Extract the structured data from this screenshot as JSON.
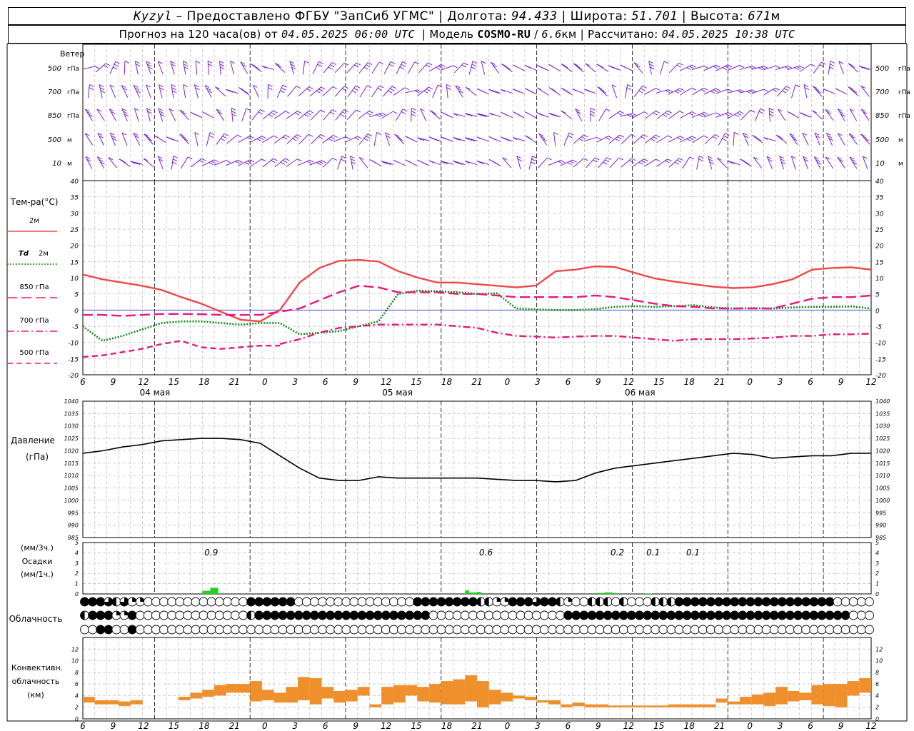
{
  "header": {
    "station": "Kyzyl",
    "sep1": "–",
    "provider": "Предоставлено ФГБУ \"ЗапСиб УГМС\"",
    "lon_label": "Долгота:",
    "lon": "94.433",
    "lat_label": "Широта:",
    "lat": "51.701",
    "alt_label": "Высота:",
    "alt": "671",
    "alt_unit": "м",
    "forecast_label": "Прогноз на 120 часа(ов) от",
    "forecast_start": "04.05.2025 06:00 UTC",
    "model_label": "Модель",
    "model": "COSMO-RU",
    "model_sep": "/",
    "resolution": "6.6",
    "resolution_unit": "км",
    "calc_label": "Рассчитано:",
    "calc_time": "04.05.2025 10:38 UTC"
  },
  "chart_data": {
    "type": "meteogram",
    "time_ticks": [
      "6",
      "9",
      "12",
      "15",
      "18",
      "21",
      "0",
      "3",
      "6",
      "9",
      "12",
      "15",
      "18",
      "21",
      "0",
      "3",
      "6",
      "9",
      "12",
      "15",
      "18",
      "21",
      "0",
      "3",
      "6",
      "9",
      "12"
    ],
    "day_labels": [
      {
        "tick_index": 2,
        "text": "04 мая"
      },
      {
        "tick_index": 10,
        "text": "05 мая"
      },
      {
        "tick_index": 18,
        "text": "06 мая"
      }
    ],
    "wind": {
      "title": "Ветер",
      "levels": [
        {
          "label": "500",
          "unit": "гПа"
        },
        {
          "label": "700",
          "unit": "гПа"
        },
        {
          "label": "850",
          "unit": "гПа"
        },
        {
          "label": "500",
          "unit": "м"
        },
        {
          "label": "10",
          "unit": "м"
        }
      ]
    },
    "temperature": {
      "title": "Тем-ра(°C)",
      "ylim": [
        -20,
        40
      ],
      "yticks": [
        -20,
        -15,
        -10,
        -5,
        0,
        5,
        10,
        15,
        20,
        25,
        30,
        35,
        40
      ],
      "series": [
        {
          "name": "2м",
          "prefix": "",
          "color": "#f04848",
          "style": "solid",
          "values": [
            11,
            9.5,
            8.5,
            7.5,
            6.2,
            4,
            2,
            -0.5,
            -3,
            -3.5,
            0,
            8.5,
            13,
            15.2,
            15.5,
            15,
            12,
            10,
            8.5,
            8.5,
            8,
            7.5,
            7,
            7.6,
            12,
            12.5,
            13.5,
            13.3,
            11.5,
            9.8,
            8.8,
            8,
            7.2,
            6.8,
            7,
            8,
            9.5,
            12.5,
            13,
            13.2,
            12.5
          ]
        },
        {
          "name": "2м",
          "prefix": "Td",
          "color": "#108810",
          "style": "dotted",
          "values": [
            -5,
            -9.5,
            -8,
            -6,
            -4,
            -3.5,
            -3.5,
            -4,
            -4.5,
            -4,
            -4,
            -7.5,
            -7,
            -6.5,
            -5,
            -3.5,
            5,
            6,
            5.8,
            5.5,
            5,
            5.2,
            0.5,
            0.2,
            0,
            0,
            0.3,
            1,
            1.2,
            1,
            1.2,
            1.5,
            0.8,
            0.5,
            0.6,
            0.5,
            0.8,
            1,
            1,
            1.1,
            0.5
          ]
        },
        {
          "name": "850",
          "prefix": "",
          "unit": "гПа",
          "color": "#e8187a",
          "style": "long-dash",
          "values": [
            -1.5,
            -1.5,
            -1.8,
            -1.5,
            -1.2,
            -1.2,
            -1.3,
            -1.5,
            -1.5,
            -1.5,
            -0.5,
            0.5,
            3,
            5.5,
            7.5,
            7,
            5.5,
            5.5,
            5.5,
            5,
            5,
            4.5,
            4,
            4,
            4,
            4,
            4.5,
            4,
            3,
            2,
            1.2,
            1,
            0.5,
            0.5,
            0.5,
            0.5,
            2,
            3.5,
            4,
            4,
            4.5
          ]
        },
        {
          "name": "700",
          "prefix": "",
          "unit": "гПа",
          "color": "#e8187a",
          "style": "dash-dot",
          "values": [
            null,
            null,
            null,
            null,
            null,
            null,
            null,
            null,
            null,
            null,
            -10.5,
            -9,
            -7,
            -5.5,
            -5,
            -4.5,
            -4.5,
            -4.5,
            -4.5,
            -5,
            -5.5,
            -7,
            -8,
            -8.2,
            -8.5,
            -8.2,
            -8,
            -8,
            -8.5,
            -9,
            -9.5,
            -9,
            -9,
            -9,
            -8.8,
            -8.5,
            -8,
            -8,
            -7.5,
            -7.5,
            -7.3
          ]
        },
        {
          "name": "500",
          "prefix": "",
          "unit": "гПа",
          "color": "#e8187a",
          "style": "dash",
          "values": [
            -14.5,
            -14,
            -13,
            -12,
            -10.5,
            -9.5,
            -11.5,
            -12,
            -11.5,
            -11,
            -11,
            null,
            null,
            null,
            null,
            null,
            null,
            null,
            null,
            null,
            null,
            null,
            null,
            null,
            null,
            null,
            null,
            null,
            null,
            null,
            null,
            null,
            null,
            null,
            null,
            null,
            null,
            null,
            null,
            null,
            null
          ]
        }
      ]
    },
    "pressure": {
      "title": "Давление",
      "unit": "(гПа)",
      "ylim": [
        985,
        1040
      ],
      "yticks": [
        985,
        990,
        995,
        1000,
        1005,
        1010,
        1015,
        1020,
        1025,
        1030,
        1035,
        1040
      ],
      "values": [
        1019,
        1020,
        1021.5,
        1022.5,
        1024,
        1024.5,
        1025,
        1025,
        1024.5,
        1023,
        1018,
        1013,
        1009,
        1008,
        1008,
        1009.5,
        1009,
        1009,
        1009,
        1009,
        1009,
        1008.5,
        1008,
        1008,
        1007.5,
        1008,
        1011,
        1013,
        1014,
        1015,
        1016,
        1017,
        1018,
        1019,
        1018.5,
        1017,
        1017.5,
        1018,
        1018,
        1019,
        1019
      ]
    },
    "precip": {
      "unit_3h": "(мм/3ч.)",
      "title": "Осадки",
      "unit_1h": "(мм/1ч.)",
      "ylim": [
        0,
        5
      ],
      "yticks": [
        0,
        1,
        2,
        3,
        4,
        5
      ],
      "labels": [
        {
          "hour": 30,
          "text": "0.9"
        },
        {
          "hour": 99,
          "text": "0.6"
        },
        {
          "hour": 132,
          "text": "0.2"
        },
        {
          "hour": 141,
          "text": "0.1"
        },
        {
          "hour": 151,
          "text": "0.1"
        }
      ],
      "bars": [
        {
          "hour": 30,
          "value": 0.3
        },
        {
          "hour": 31,
          "value": 0.3
        },
        {
          "hour": 32,
          "value": 0.6
        },
        {
          "hour": 33,
          "value": 0.6
        },
        {
          "hour": 96,
          "value": 0.35
        },
        {
          "hour": 97,
          "value": 0.15
        },
        {
          "hour": 98,
          "value": 0.15
        },
        {
          "hour": 99,
          "value": 0.2
        },
        {
          "hour": 129,
          "value": 0.1
        },
        {
          "hour": 130,
          "value": 0.1
        },
        {
          "hour": 131,
          "value": 0.15
        },
        {
          "hour": 132,
          "value": 0.15
        },
        {
          "hour": 133,
          "value": 0.1
        },
        {
          "hour": 141,
          "value": 0.05
        },
        {
          "hour": 142,
          "value": 0.05
        }
      ]
    },
    "cloudiness": {
      "title": "Облачность",
      "rows": [
        "FFFDBDCCNNNNNNNNNNNNNFFFFFFNNNNNNNNNNNNNNNFFFFFFFFBBCCFFFDFFBCNNBBBNBNNNBBBFFFFFFFFFFFFFFFFFFFFNNNNN",
        "BFFFCCFNNNNNNNNNNNNNNBFFFFFFFFFFFFFFFFFFFFFFNNNNNNNNNNNNNNNNNFFFFFFFFFFFFFFFFFFFFFFFFFFFFFFFFFFFFNNN",
        "NNFFNNFNNNNNNNNNNNNNNNNNNNNNNNNNNNNNNNNNNNNNNNNNNNNNNNNNNNNNNNNNNNNNNNNNNNNNNNNNNNNNNNNNNNNNNNNNNNNN"
      ]
    },
    "convective": {
      "title1": "Конвективн.",
      "title2": "облачность",
      "unit": "(км)",
      "ylim": [
        0,
        14
      ],
      "yticks": [
        0,
        2,
        4,
        6,
        8,
        10,
        12
      ],
      "color": "#f0902c",
      "bars": [
        {
          "h0": 0,
          "h1": 3,
          "bot": 2.8,
          "top": 3.8
        },
        {
          "h0": 3,
          "h1": 6,
          "bot": 2.5,
          "top": 3.2
        },
        {
          "h0": 6,
          "h1": 9,
          "bot": 2.5,
          "top": 3.2
        },
        {
          "h0": 9,
          "h1": 12,
          "bot": 2.2,
          "top": 3.0
        },
        {
          "h0": 12,
          "h1": 15,
          "bot": 2.5,
          "top": 3.2
        },
        {
          "h0": 24,
          "h1": 27,
          "bot": 3.2,
          "top": 3.8
        },
        {
          "h0": 27,
          "h1": 30,
          "bot": 3.5,
          "top": 4.5
        },
        {
          "h0": 30,
          "h1": 33,
          "bot": 3.8,
          "top": 5.0
        },
        {
          "h0": 33,
          "h1": 36,
          "bot": 4.0,
          "top": 5.8
        },
        {
          "h0": 36,
          "h1": 39,
          "bot": 4.5,
          "top": 6.0
        },
        {
          "h0": 39,
          "h1": 42,
          "bot": 4.5,
          "top": 6.0
        },
        {
          "h0": 42,
          "h1": 45,
          "bot": 3.0,
          "top": 6.5
        },
        {
          "h0": 45,
          "h1": 48,
          "bot": 3.2,
          "top": 5.0
        },
        {
          "h0": 48,
          "h1": 51,
          "bot": 2.8,
          "top": 4.5
        },
        {
          "h0": 51,
          "h1": 54,
          "bot": 2.8,
          "top": 5.5
        },
        {
          "h0": 54,
          "h1": 57,
          "bot": 3.2,
          "top": 7.2
        },
        {
          "h0": 57,
          "h1": 60,
          "bot": 2.5,
          "top": 7.0
        },
        {
          "h0": 60,
          "h1": 63,
          "bot": 3.5,
          "top": 5.5
        },
        {
          "h0": 63,
          "h1": 66,
          "bot": 2.8,
          "top": 4.8
        },
        {
          "h0": 66,
          "h1": 69,
          "bot": 3.0,
          "top": 5.0
        },
        {
          "h0": 69,
          "h1": 72,
          "bot": 4.0,
          "top": 5.5
        },
        {
          "h0": 72,
          "h1": 75,
          "bot": 2.0,
          "top": 2.5
        },
        {
          "h0": 75,
          "h1": 78,
          "bot": 2.5,
          "top": 5.5
        },
        {
          "h0": 78,
          "h1": 81,
          "bot": 2.8,
          "top": 5.8
        },
        {
          "h0": 81,
          "h1": 84,
          "bot": 4.0,
          "top": 5.8
        },
        {
          "h0": 84,
          "h1": 87,
          "bot": 3.0,
          "top": 5.5
        },
        {
          "h0": 87,
          "h1": 90,
          "bot": 2.8,
          "top": 6.0
        },
        {
          "h0": 90,
          "h1": 93,
          "bot": 2.5,
          "top": 6.5
        },
        {
          "h0": 93,
          "h1": 96,
          "bot": 2.5,
          "top": 6.8
        },
        {
          "h0": 96,
          "h1": 99,
          "bot": 3.0,
          "top": 7.5
        },
        {
          "h0": 99,
          "h1": 102,
          "bot": 2.0,
          "top": 6.5
        },
        {
          "h0": 102,
          "h1": 105,
          "bot": 2.5,
          "top": 5.0
        },
        {
          "h0": 105,
          "h1": 108,
          "bot": 3.0,
          "top": 4.5
        },
        {
          "h0": 108,
          "h1": 111,
          "bot": 3.5,
          "top": 4.0
        },
        {
          "h0": 111,
          "h1": 114,
          "bot": 3.2,
          "top": 3.8
        },
        {
          "h0": 114,
          "h1": 117,
          "bot": 2.8,
          "top": 3.2
        },
        {
          "h0": 117,
          "h1": 120,
          "bot": 2.5,
          "top": 3.2
        },
        {
          "h0": 120,
          "h1": 123,
          "bot": 2.0,
          "top": 2.5
        },
        {
          "h0": 123,
          "h1": 126,
          "bot": 2.2,
          "top": 2.8
        },
        {
          "h0": 126,
          "h1": 129,
          "bot": 2.0,
          "top": 2.5
        },
        {
          "h0": 129,
          "h1": 132,
          "bot": 2.0,
          "top": 2.5
        },
        {
          "h0": 132,
          "h1": 135,
          "bot": 2.0,
          "top": 2.3
        },
        {
          "h0": 135,
          "h1": 138,
          "bot": 2.0,
          "top": 2.3
        },
        {
          "h0": 138,
          "h1": 141,
          "bot": 2.0,
          "top": 2.3
        },
        {
          "h0": 141,
          "h1": 144,
          "bot": 2.0,
          "top": 2.3
        },
        {
          "h0": 144,
          "h1": 147,
          "bot": 2.0,
          "top": 2.3
        },
        {
          "h0": 147,
          "h1": 150,
          "bot": 2.0,
          "top": 2.5
        },
        {
          "h0": 150,
          "h1": 153,
          "bot": 2.0,
          "top": 2.5
        },
        {
          "h0": 153,
          "h1": 156,
          "bot": 2.0,
          "top": 2.5
        },
        {
          "h0": 156,
          "h1": 159,
          "bot": 2.0,
          "top": 2.5
        },
        {
          "h0": 159,
          "h1": 162,
          "bot": 2.8,
          "top": 3.5
        },
        {
          "h0": 162,
          "h1": 165,
          "bot": 2.5,
          "top": 3.0
        },
        {
          "h0": 165,
          "h1": 168,
          "bot": 2.5,
          "top": 3.8
        },
        {
          "h0": 168,
          "h1": 171,
          "bot": 2.5,
          "top": 4.2
        },
        {
          "h0": 171,
          "h1": 174,
          "bot": 2.2,
          "top": 4.5
        },
        {
          "h0": 174,
          "h1": 177,
          "bot": 2.5,
          "top": 5.5
        },
        {
          "h0": 177,
          "h1": 180,
          "bot": 3.0,
          "top": 4.8
        },
        {
          "h0": 180,
          "h1": 183,
          "bot": 3.2,
          "top": 4.5
        },
        {
          "h0": 183,
          "h1": 186,
          "bot": 2.5,
          "top": 5.8
        },
        {
          "h0": 186,
          "h1": 189,
          "bot": 2.2,
          "top": 6.0
        },
        {
          "h0": 189,
          "h1": 192,
          "bot": 2.0,
          "top": 6.0
        },
        {
          "h0": 192,
          "h1": 195,
          "bot": 4.0,
          "top": 6.5
        },
        {
          "h0": 195,
          "h1": 198,
          "bot": 4.5,
          "top": 7.0
        }
      ]
    }
  }
}
